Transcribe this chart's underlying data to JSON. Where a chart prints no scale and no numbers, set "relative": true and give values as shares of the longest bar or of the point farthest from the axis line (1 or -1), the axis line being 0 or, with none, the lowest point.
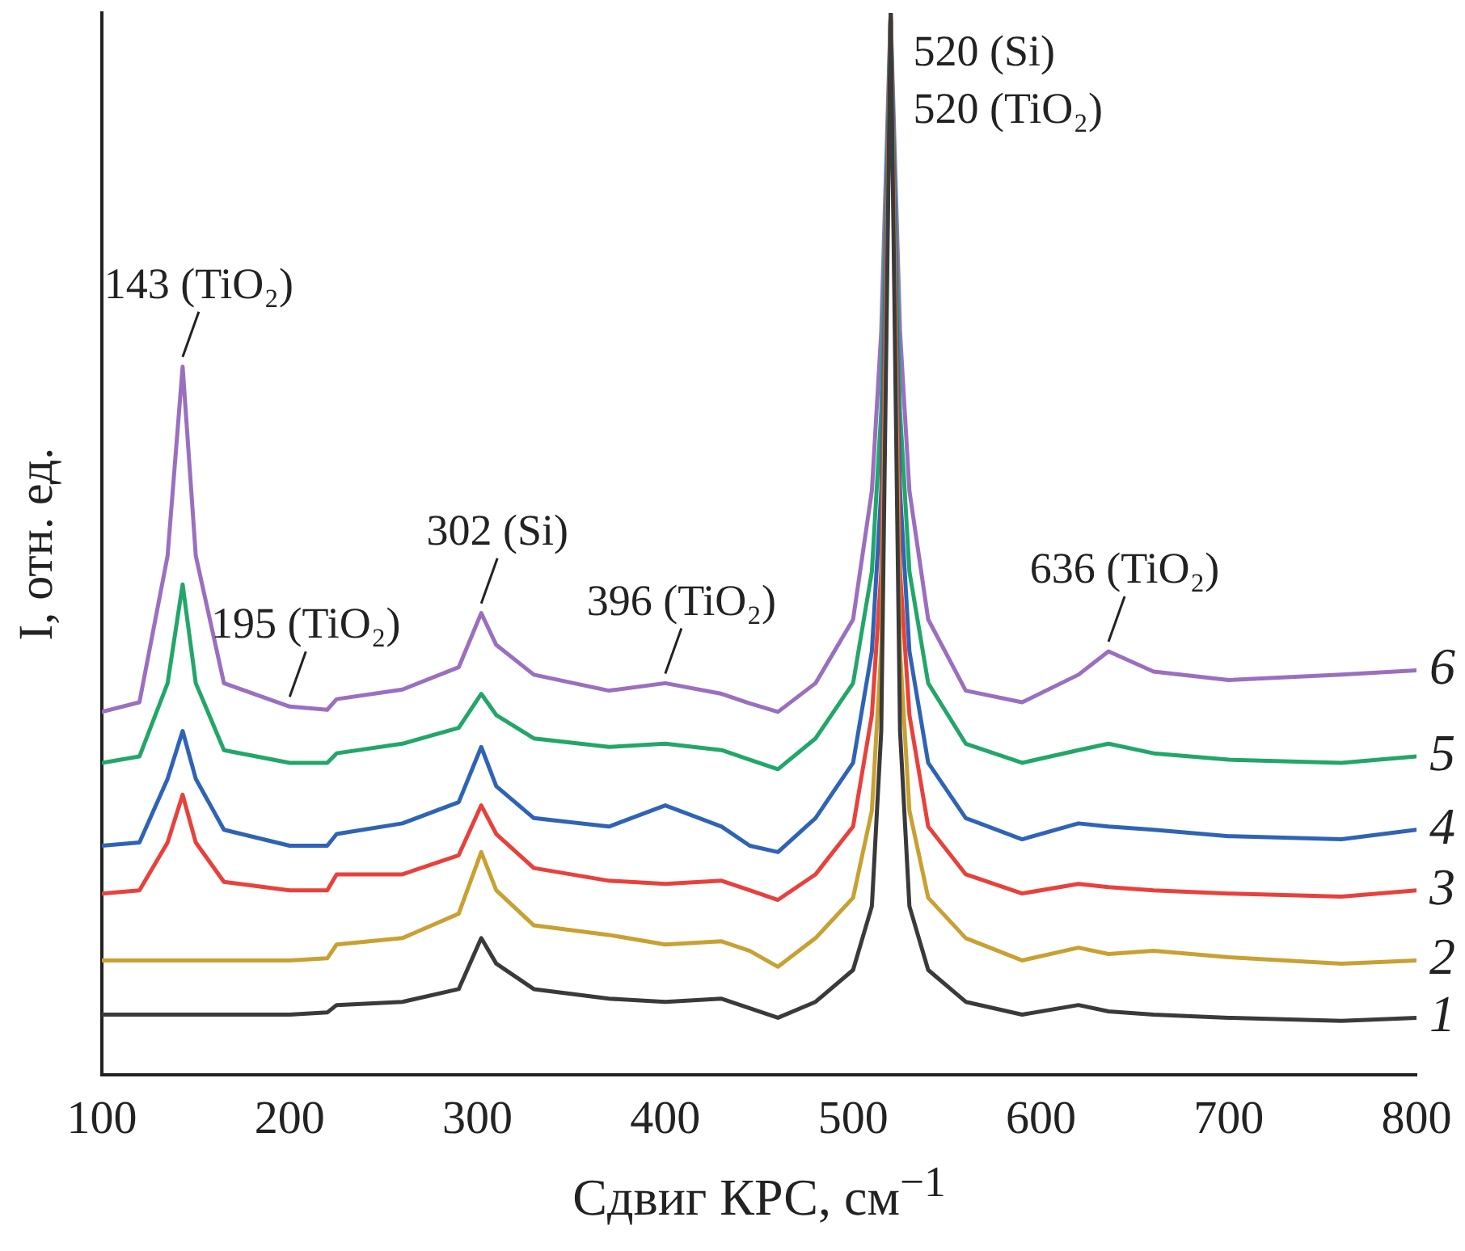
{
  "chart_data": {
    "type": "line",
    "relative": true,
    "xlabel": "Сдвиг КРС, см$^{−1}$",
    "ylabel": "I, отн. ед.",
    "x": [
      100,
      120,
      135,
      143,
      150,
      165,
      200,
      220,
      225,
      260,
      290,
      302,
      310,
      330,
      370,
      400,
      430,
      445,
      460,
      480,
      500,
      510,
      515,
      520,
      525,
      530,
      540,
      560,
      590,
      620,
      636,
      660,
      700,
      760,
      800
    ],
    "xlim": [
      100,
      800
    ],
    "xticks": [
      100,
      200,
      300,
      400,
      500,
      600,
      700,
      800
    ],
    "grid": false,
    "legend": false,
    "marker": "none",
    "line_style": "solid",
    "series": [
      {
        "name": "1",
        "color": "#3a3a3a",
        "values": [
          0.057,
          0.057,
          0.057,
          0.057,
          0.057,
          0.057,
          0.057,
          0.059,
          0.066,
          0.069,
          0.081,
          0.129,
          0.105,
          0.081,
          0.072,
          0.069,
          0.072,
          0.063,
          0.054,
          0.069,
          0.099,
          0.159,
          0.324,
          1,
          0.324,
          0.159,
          0.099,
          0.069,
          0.057,
          0.066,
          0.06,
          0.057,
          0.054,
          0.051,
          0.054
        ]
      },
      {
        "name": "2",
        "color": "#c9a032",
        "values": [
          0.108,
          0.108,
          0.108,
          0.108,
          0.108,
          0.108,
          0.108,
          0.11,
          0.123,
          0.129,
          0.152,
          0.21,
          0.174,
          0.141,
          0.132,
          0.123,
          0.126,
          0.117,
          0.102,
          0.129,
          0.167,
          0.249,
          0.399,
          1,
          0.399,
          0.249,
          0.167,
          0.129,
          0.108,
          0.12,
          0.114,
          0.117,
          0.111,
          0.105,
          0.108
        ]
      },
      {
        "name": "3",
        "color": "#e8413c",
        "values": [
          0.171,
          0.174,
          0.219,
          0.264,
          0.219,
          0.182,
          0.174,
          0.174,
          0.189,
          0.189,
          0.207,
          0.254,
          0.227,
          0.195,
          0.183,
          0.18,
          0.183,
          0.174,
          0.165,
          0.189,
          0.234,
          0.339,
          0.474,
          1,
          0.474,
          0.339,
          0.234,
          0.189,
          0.171,
          0.18,
          0.177,
          0.174,
          0.171,
          0.168,
          0.174
        ]
      },
      {
        "name": "4",
        "color": "#2f63b5",
        "values": [
          0.216,
          0.219,
          0.279,
          0.324,
          0.279,
          0.231,
          0.216,
          0.216,
          0.227,
          0.237,
          0.257,
          0.309,
          0.272,
          0.242,
          0.234,
          0.254,
          0.234,
          0.216,
          0.21,
          0.242,
          0.294,
          0.399,
          0.55,
          1,
          0.55,
          0.399,
          0.294,
          0.242,
          0.222,
          0.237,
          0.234,
          0.231,
          0.225,
          0.222,
          0.231
        ]
      },
      {
        "name": "5",
        "color": "#22a66a",
        "values": [
          0.294,
          0.3,
          0.369,
          0.462,
          0.369,
          0.306,
          0.294,
          0.294,
          0.303,
          0.312,
          0.327,
          0.359,
          0.339,
          0.317,
          0.309,
          0.312,
          0.306,
          0.297,
          0.288,
          0.317,
          0.369,
          0.474,
          0.625,
          1,
          0.625,
          0.474,
          0.369,
          0.312,
          0.294,
          0.306,
          0.312,
          0.303,
          0.297,
          0.294,
          0.3
        ]
      },
      {
        "name": "6",
        "color": "#9b6fc0",
        "values": [
          0.342,
          0.351,
          0.489,
          0.667,
          0.489,
          0.369,
          0.347,
          0.344,
          0.354,
          0.363,
          0.384,
          0.435,
          0.405,
          0.377,
          0.362,
          0.369,
          0.359,
          0.35,
          0.342,
          0.369,
          0.429,
          0.55,
          0.7,
          1,
          0.7,
          0.55,
          0.429,
          0.362,
          0.351,
          0.377,
          0.399,
          0.38,
          0.372,
          0.377,
          0.381
        ]
      }
    ],
    "annotations": [
      {
        "text": "143 (TiO₂)",
        "x": 143,
        "y": 0.667
      },
      {
        "text": "195 (TiO₂)",
        "x": 200,
        "y": 0.347
      },
      {
        "text": "302 (Si)",
        "x": 302,
        "y": 0.435
      },
      {
        "text": "396 (TiO₂)",
        "x": 400,
        "y": 0.369
      },
      {
        "text": "520 (Si)",
        "x": 520,
        "y": 0.961
      },
      {
        "text": "520 (TiO₂)",
        "x": 520,
        "y": 0.907
      },
      {
        "text": "636 (TiO₂)",
        "x": 636,
        "y": 0.399
      }
    ]
  }
}
